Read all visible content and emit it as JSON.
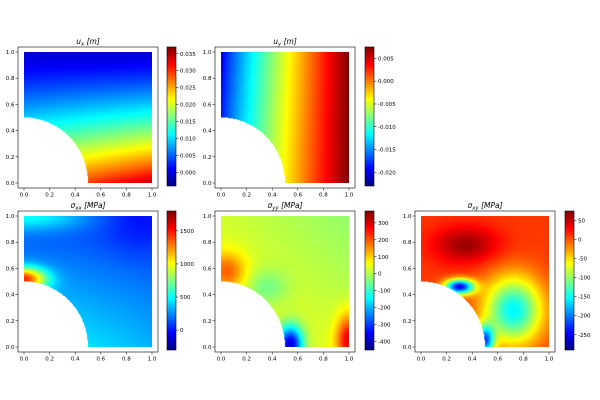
{
  "figure": {
    "colormap": "jet",
    "colormap_stops": [
      "#00007f",
      "#0000ff",
      "#007fff",
      "#00ffff",
      "#7fff7f",
      "#ffff00",
      "#ff7f00",
      "#ff0000",
      "#7f0000"
    ],
    "background": "#ffffff"
  },
  "chart_data": [
    {
      "type": "heatmap",
      "title": "u_x [m]",
      "title_main": "u",
      "title_sub": "x",
      "title_unit": " [m]",
      "field": "ux",
      "xlim": [
        0.0,
        1.0
      ],
      "ylim": [
        0.0,
        1.0
      ],
      "xticks": [
        "0.0",
        "0.2",
        "0.4",
        "0.6",
        "0.8",
        "1.0"
      ],
      "yticks": [
        "0.0",
        "0.2",
        "0.4",
        "0.6",
        "0.8",
        "1.0"
      ],
      "hole_radius": 0.5,
      "colorbar": {
        "vmin": -0.004,
        "vmax": 0.037,
        "ticks": [
          "0.000",
          "0.005",
          "0.010",
          "0.015",
          "0.020",
          "0.025",
          "0.030",
          "0.035"
        ],
        "tick_values": [
          0.0,
          0.005,
          0.01,
          0.015,
          0.02,
          0.025,
          0.03,
          0.035
        ]
      }
    },
    {
      "type": "heatmap",
      "title": "u_y [m]",
      "title_main": "u",
      "title_sub": "y",
      "title_unit": " [m]",
      "field": "uy",
      "xlim": [
        0.0,
        1.0
      ],
      "ylim": [
        0.0,
        1.0
      ],
      "xticks": [
        "0.0",
        "0.2",
        "0.4",
        "0.6",
        "0.8",
        "1.0"
      ],
      "yticks": [
        "0.0",
        "0.2",
        "0.4",
        "0.6",
        "0.8",
        "1.0"
      ],
      "hole_radius": 0.5,
      "colorbar": {
        "vmin": -0.023,
        "vmax": 0.0075,
        "ticks": [
          "0.005",
          "0.000",
          "-0.005",
          "-0.010",
          "-0.015",
          "-0.020"
        ],
        "tick_values": [
          0.005,
          0.0,
          -0.005,
          -0.01,
          -0.015,
          -0.02
        ]
      }
    },
    {
      "type": "heatmap",
      "title": "σ_xx [MPa]",
      "title_main": "σ",
      "title_sub": "xx",
      "title_unit": " [MPa]",
      "field": "sxx",
      "xlim": [
        0.0,
        1.0
      ],
      "ylim": [
        0.0,
        1.0
      ],
      "xticks": [
        "0.0",
        "0.2",
        "0.4",
        "0.6",
        "0.8",
        "1.0"
      ],
      "yticks": [
        "0.0",
        "0.2",
        "0.4",
        "0.6",
        "0.8",
        "1.0"
      ],
      "hole_radius": 0.5,
      "colorbar": {
        "vmin": -300,
        "vmax": 1800,
        "ticks": [
          "1500",
          "1000",
          "500",
          "0"
        ],
        "tick_values": [
          1500,
          1000,
          500,
          0
        ]
      }
    },
    {
      "type": "heatmap",
      "title": "σ_yy [MPa]",
      "title_main": "σ",
      "title_sub": "yy",
      "title_unit": " [MPa]",
      "field": "syy",
      "xlim": [
        0.0,
        1.0
      ],
      "ylim": [
        0.0,
        1.0
      ],
      "xticks": [
        "0.0",
        "0.2",
        "0.4",
        "0.6",
        "0.8",
        "1.0"
      ],
      "yticks": [
        "0.0",
        "0.2",
        "0.4",
        "0.6",
        "0.8",
        "1.0"
      ],
      "hole_radius": 0.5,
      "colorbar": {
        "vmin": -450,
        "vmax": 370,
        "ticks": [
          "300",
          "200",
          "100",
          "0",
          "-100",
          "-200",
          "-300",
          "-400"
        ],
        "tick_values": [
          300,
          200,
          100,
          0,
          -100,
          -200,
          -300,
          -400
        ]
      }
    },
    {
      "type": "heatmap",
      "title": "σ_xy [MPa]",
      "title_main": "σ",
      "title_sub": "xy",
      "title_unit": " [MPa]",
      "field": "sxy",
      "xlim": [
        0.0,
        1.0
      ],
      "ylim": [
        0.0,
        1.0
      ],
      "xticks": [
        "0.0",
        "0.2",
        "0.4",
        "0.6",
        "0.8",
        "1.0"
      ],
      "yticks": [
        "0.0",
        "0.2",
        "0.4",
        "0.6",
        "0.8",
        "1.0"
      ],
      "hole_radius": 0.5,
      "colorbar": {
        "vmin": -290,
        "vmax": 75,
        "ticks": [
          "50",
          "0",
          "-50",
          "-100",
          "-150",
          "-200",
          "-250"
        ],
        "tick_values": [
          50,
          0,
          -50,
          -100,
          -150,
          -200,
          -250
        ]
      }
    }
  ]
}
